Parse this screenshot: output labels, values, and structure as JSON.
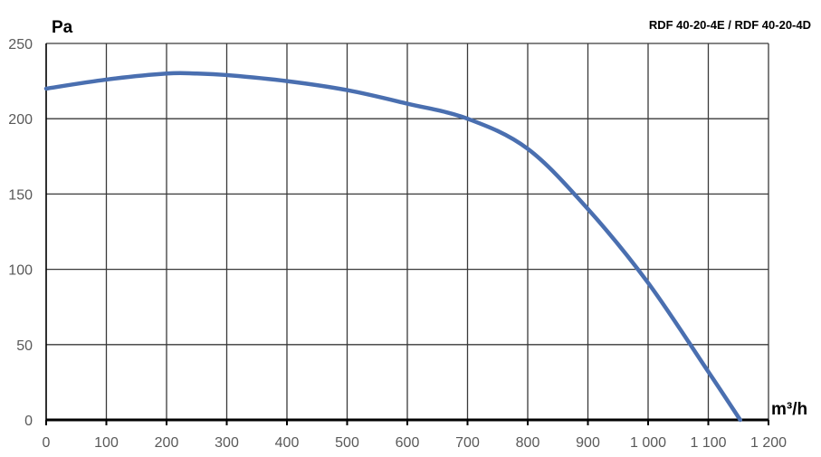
{
  "chart_data": {
    "type": "line",
    "title": "RDF 40-20-4E / RDF 40-20-4D",
    "xlabel": "m³/h",
    "ylabel": "Pa",
    "xlim": [
      0,
      1200
    ],
    "ylim": [
      0,
      250
    ],
    "grid": true,
    "x_ticks": [
      0,
      100,
      200,
      300,
      400,
      500,
      600,
      700,
      800,
      900,
      1000,
      1100,
      1200
    ],
    "x_tick_labels": [
      "0",
      "100",
      "200",
      "300",
      "400",
      "500",
      "600",
      "700",
      "800",
      "900",
      "1 000",
      "1 100",
      "1 200"
    ],
    "y_ticks": [
      0,
      50,
      100,
      150,
      200,
      250
    ],
    "y_tick_labels": [
      "0",
      "50",
      "100",
      "150",
      "200",
      "250"
    ],
    "series": [
      {
        "color": "#4a6fb0",
        "x": [
          0,
          100,
          200,
          250,
          300,
          400,
          500,
          600,
          700,
          800,
          900,
          1000,
          1100,
          1153
        ],
        "y": [
          220,
          226,
          230,
          230,
          229,
          225,
          219,
          210,
          200,
          180,
          140,
          91,
          32,
          0
        ]
      }
    ]
  }
}
